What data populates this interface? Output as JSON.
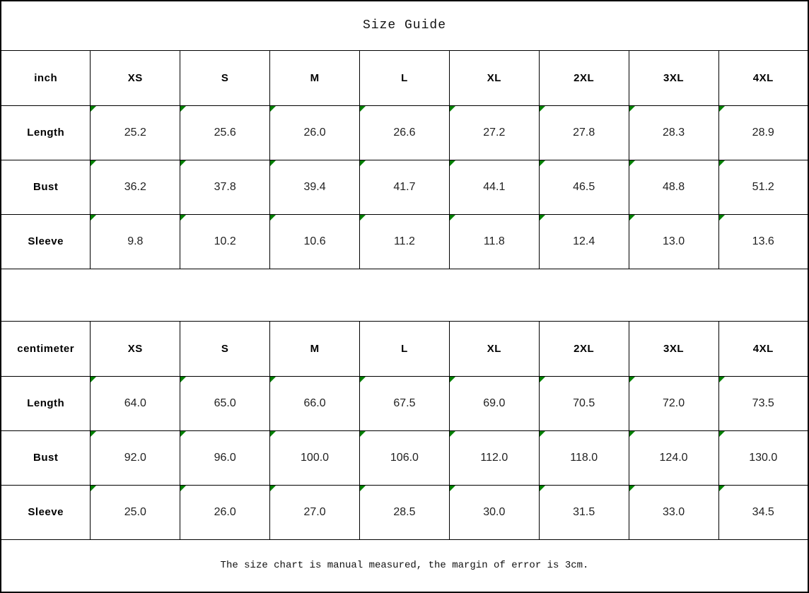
{
  "title": "Size Guide",
  "footer_note": "The size chart is manual measured, the margin of error is 3cm.",
  "columns": [
    "XS",
    "S",
    "M",
    "L",
    "XL",
    "2XL",
    "3XL",
    "4XL"
  ],
  "tables": [
    {
      "unit_label": "inch",
      "rows": [
        {
          "label": "Length",
          "values": [
            "25.2",
            "25.6",
            "26.0",
            "26.6",
            "27.2",
            "27.8",
            "28.3",
            "28.9"
          ]
        },
        {
          "label": "Bust",
          "values": [
            "36.2",
            "37.8",
            "39.4",
            "41.7",
            "44.1",
            "46.5",
            "48.8",
            "51.2"
          ]
        },
        {
          "label": "Sleeve",
          "values": [
            "9.8",
            "10.2",
            "10.6",
            "11.2",
            "11.8",
            "12.4",
            "13.0",
            "13.6"
          ]
        }
      ]
    },
    {
      "unit_label": "centimeter",
      "rows": [
        {
          "label": "Length",
          "values": [
            "64.0",
            "65.0",
            "66.0",
            "67.5",
            "69.0",
            "70.5",
            "72.0",
            "73.5"
          ]
        },
        {
          "label": "Bust",
          "values": [
            "92.0",
            "96.0",
            "100.0",
            "106.0",
            "112.0",
            "118.0",
            "124.0",
            "130.0"
          ]
        },
        {
          "label": "Sleeve",
          "values": [
            "25.0",
            "26.0",
            "27.0",
            "28.5",
            "30.0",
            "31.5",
            "33.0",
            "34.5"
          ]
        }
      ]
    }
  ],
  "marker": {
    "icon": "corner-triangle",
    "color": "#008000"
  },
  "colors": {
    "grid_border": "#000000",
    "background": "#ffffff",
    "text": "#000000"
  }
}
